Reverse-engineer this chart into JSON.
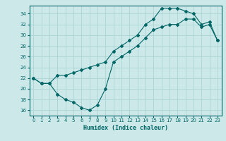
{
  "title": "",
  "xlabel": "Humidex (Indice chaleur)",
  "ylabel": "",
  "background_color": "#cce8e8",
  "grid_color": "#aad4d4",
  "line_color": "#006666",
  "xlim": [
    -0.5,
    23.5
  ],
  "ylim": [
    15.0,
    35.5
  ],
  "xticks": [
    0,
    1,
    2,
    3,
    4,
    5,
    6,
    7,
    8,
    9,
    10,
    11,
    12,
    13,
    14,
    15,
    16,
    17,
    18,
    19,
    20,
    21,
    22,
    23
  ],
  "yticks": [
    16,
    18,
    20,
    22,
    24,
    26,
    28,
    30,
    32,
    34
  ],
  "line1_x": [
    0,
    1,
    2,
    3,
    4,
    5,
    6,
    7,
    8,
    9,
    10,
    11,
    12,
    13,
    14,
    15,
    16,
    17,
    18,
    19,
    20,
    21,
    22,
    23
  ],
  "line1_y": [
    22,
    21,
    21,
    19,
    18,
    17.5,
    16.5,
    16,
    17,
    20,
    25,
    26,
    27,
    28,
    29.5,
    31,
    31.5,
    32,
    32,
    33,
    33,
    31.5,
    32,
    29
  ],
  "line2_x": [
    0,
    1,
    2,
    3,
    4,
    5,
    6,
    7,
    8,
    9,
    10,
    11,
    12,
    13,
    14,
    15,
    16,
    17,
    18,
    19,
    20,
    21,
    22,
    23
  ],
  "line2_y": [
    22,
    21,
    21,
    22.5,
    22.5,
    23,
    23.5,
    24,
    24.5,
    25,
    27,
    28,
    29,
    30,
    32,
    33,
    35,
    35,
    35,
    34.5,
    34,
    32,
    32.5,
    29
  ],
  "marker": "D",
  "markersize": 2.0,
  "linewidth": 0.8,
  "tick_fontsize": 5.0,
  "xlabel_fontsize": 6.0,
  "figsize": [
    3.2,
    2.0
  ],
  "dpi": 100
}
